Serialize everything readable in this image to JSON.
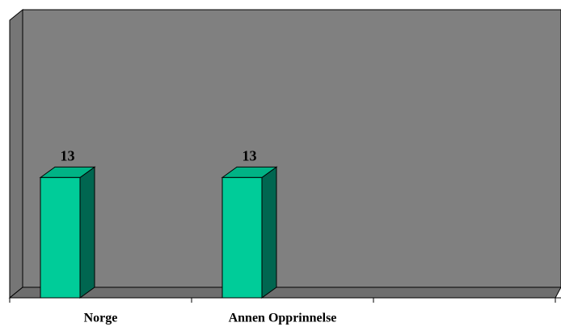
{
  "chart_data": {
    "type": "bar3d",
    "categories": [
      "Norge",
      "Annen Opprinnelse",
      null
    ],
    "values": [
      13,
      13,
      null
    ],
    "color": "#00cc99",
    "ylim": [
      0,
      30
    ]
  }
}
